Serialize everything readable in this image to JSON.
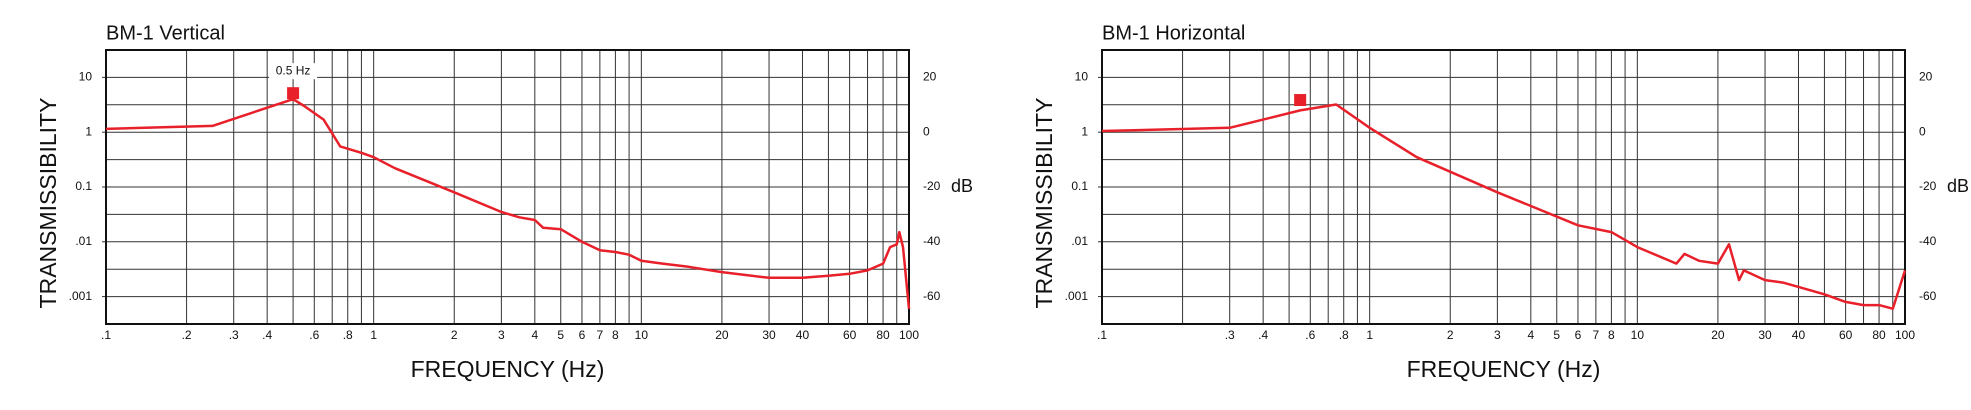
{
  "chart_data": [
    {
      "type": "line",
      "title": "BM-1 Vertical",
      "x_label": "FREQUENCY (Hz)",
      "y_label": "TRANSMISSIBILITY",
      "y2_label": "dB",
      "xscale": "log",
      "yscale": "log",
      "grid": true,
      "xlim": [
        0.1,
        100
      ],
      "ylim": [
        0.000316,
        31.6
      ],
      "y2lim": [
        -70,
        30
      ],
      "xticks": [
        {
          "value": 0.1,
          "label": ".1"
        },
        {
          "value": 0.2,
          "label": ".2"
        },
        {
          "value": 0.3,
          "label": ".3"
        },
        {
          "value": 0.4,
          "label": ".4"
        },
        {
          "value": 0.5,
          "label": null
        },
        {
          "value": 0.6,
          "label": ".6"
        },
        {
          "value": 0.7,
          "label": null
        },
        {
          "value": 0.8,
          "label": ".8"
        },
        {
          "value": 0.9,
          "label": null
        },
        1,
        2,
        3,
        4,
        5,
        6,
        7,
        8,
        {
          "value": 9,
          "label": null
        },
        10,
        20,
        30,
        40,
        {
          "value": 50,
          "label": null
        },
        60,
        {
          "value": 70,
          "label": null
        },
        80,
        {
          "value": 90,
          "label": null
        },
        100
      ],
      "yticks": [
        10,
        1,
        0.1,
        {
          "value": 0.01,
          "label": ".01"
        },
        {
          "value": 0.001,
          "label": ".001"
        }
      ],
      "y2ticks": [
        20,
        {
          "value": 10,
          "label": null
        },
        0,
        {
          "value": -10,
          "label": null
        },
        -20,
        {
          "value": -30,
          "label": null
        },
        -40,
        {
          "value": -50,
          "label": null
        },
        -60
      ],
      "x": [
        0.1,
        0.25,
        0.4,
        0.5,
        0.55,
        0.65,
        0.75,
        0.9,
        1,
        1.2,
        2,
        3,
        3.5,
        4,
        4.3,
        5,
        6,
        7,
        8,
        9,
        10,
        12,
        15,
        20,
        30,
        40,
        50,
        60,
        70,
        80,
        85,
        90,
        92,
        95,
        100
      ],
      "series": [
        {
          "color": "#e8202a",
          "values": [
            1.15,
            1.3,
            2.8,
            4,
            3,
            1.7,
            0.55,
            0.42,
            0.35,
            0.22,
            0.08,
            0.035,
            0.028,
            0.025,
            0.018,
            0.017,
            0.01,
            0.007,
            0.0065,
            0.0058,
            0.0045,
            0.004,
            0.0035,
            0.0028,
            0.0022,
            0.0022,
            0.0024,
            0.0026,
            0.003,
            0.004,
            0.008,
            0.009,
            0.015,
            0.008,
            0.0006
          ]
        }
      ],
      "markers": [
        {
          "x": 0.5,
          "y": 4
        }
      ],
      "annotations": [
        {
          "text": "0.5 Hz",
          "x": 0.5,
          "y": 4
        }
      ]
    },
    {
      "type": "line",
      "title": "BM-1 Horizontal",
      "x_label": "FREQUENCY (Hz)",
      "y_label": "TRANSMISSIBILITY",
      "y2_label": "dB",
      "xscale": "log",
      "yscale": "log",
      "grid": true,
      "xlim": [
        0.1,
        100
      ],
      "ylim": [
        0.000316,
        31.6
      ],
      "y2lim": [
        -70,
        30
      ],
      "xticks": [
        {
          "value": 0.1,
          "label": ".1"
        },
        {
          "value": 0.2,
          "label": null
        },
        {
          "value": 0.3,
          "label": ".3"
        },
        {
          "value": 0.4,
          "label": ".4"
        },
        {
          "value": 0.5,
          "label": null
        },
        {
          "value": 0.6,
          "label": ".6"
        },
        {
          "value": 0.7,
          "label": null
        },
        {
          "value": 0.8,
          "label": ".8"
        },
        {
          "value": 0.9,
          "label": null
        },
        1,
        2,
        3,
        4,
        5,
        6,
        7,
        8,
        {
          "value": 9,
          "label": null
        },
        10,
        20,
        30,
        40,
        {
          "value": 50,
          "label": null
        },
        60,
        {
          "value": 70,
          "label": null
        },
        80,
        {
          "value": 90,
          "label": null
        },
        100
      ],
      "yticks": [
        10,
        1,
        0.1,
        {
          "value": 0.01,
          "label": ".01"
        },
        {
          "value": 0.001,
          "label": ".001"
        }
      ],
      "y2ticks": [
        20,
        {
          "value": 10,
          "label": null
        },
        0,
        {
          "value": -10,
          "label": null
        },
        -20,
        {
          "value": -30,
          "label": null
        },
        -40,
        {
          "value": -50,
          "label": null
        },
        -60
      ],
      "x": [
        0.1,
        0.3,
        0.55,
        0.75,
        1,
        1.5,
        3,
        6,
        8,
        10,
        14,
        15,
        17,
        20,
        22,
        24,
        25,
        30,
        35,
        40,
        50,
        60,
        70,
        80,
        90,
        100
      ],
      "series": [
        {
          "color": "#e8202a",
          "values": [
            1.05,
            1.2,
            2.5,
            3.2,
            1.2,
            0.35,
            0.08,
            0.02,
            0.015,
            0.008,
            0.004,
            0.006,
            0.0045,
            0.004,
            0.009,
            0.002,
            0.003,
            0.002,
            0.0018,
            0.0015,
            0.0011,
            0.0008,
            0.0007,
            0.0007,
            0.0006,
            0.003
          ]
        }
      ],
      "markers": [
        {
          "x": 0.55,
          "y": 3
        }
      ],
      "annotations": []
    }
  ]
}
